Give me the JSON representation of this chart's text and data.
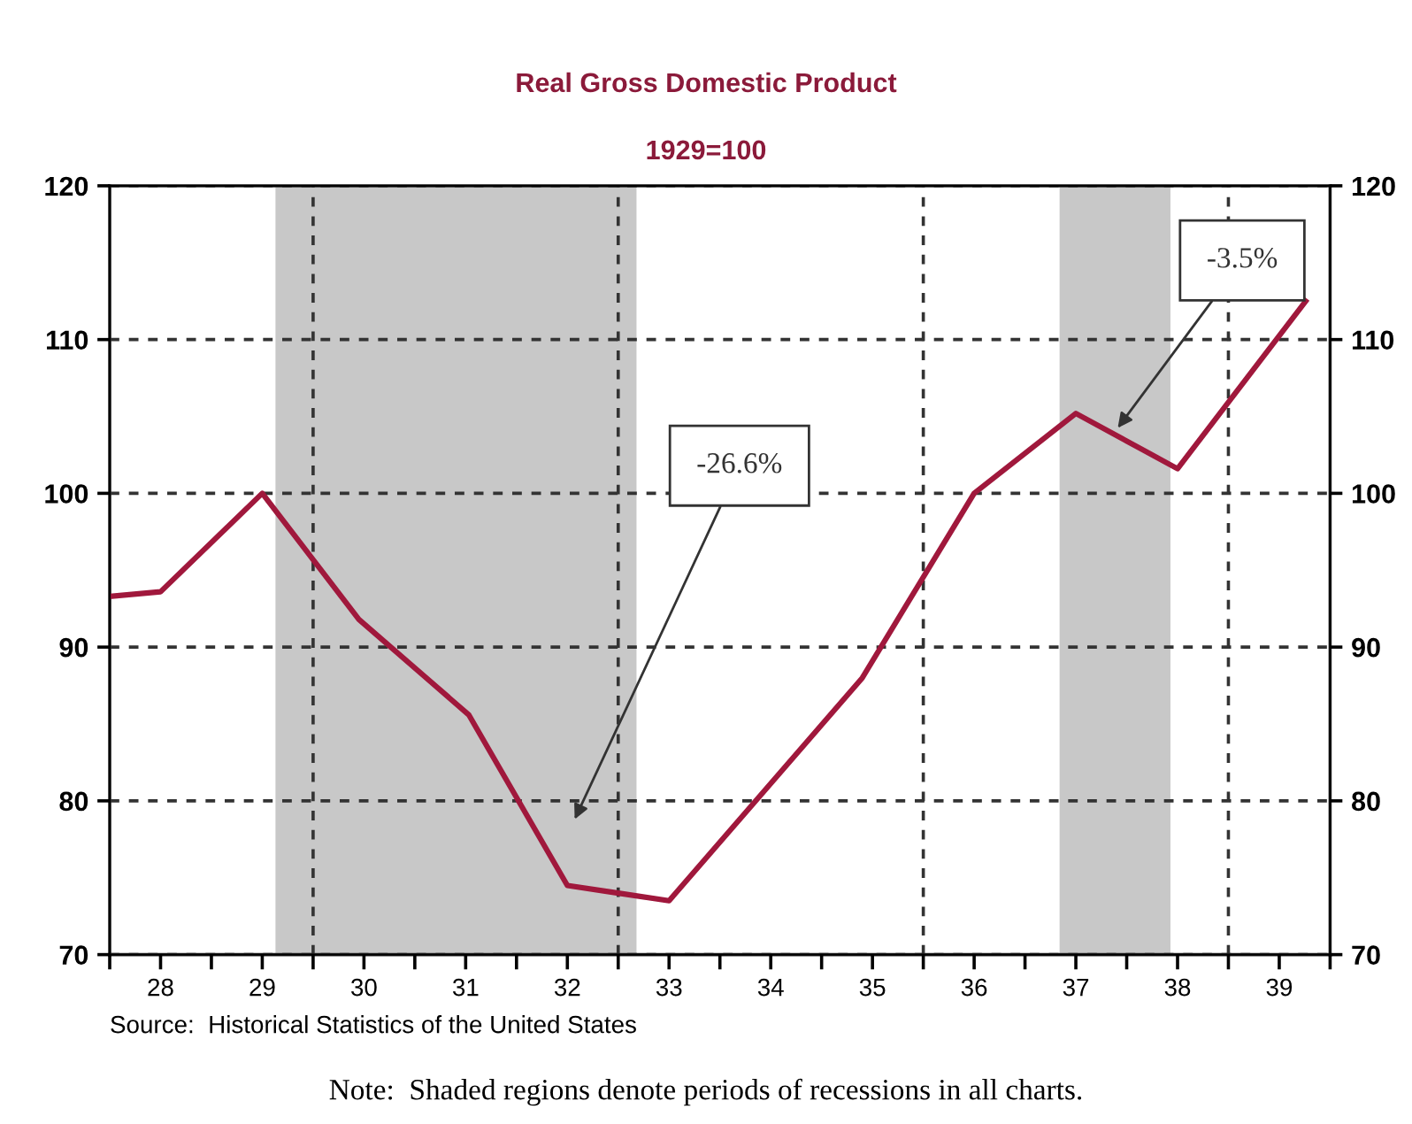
{
  "chart_data": {
    "type": "line",
    "title": "Real Gross Domestic Product",
    "subtitle": "1929=100",
    "x": [
      27.5,
      28.0,
      29.0,
      29.95,
      31.03,
      32.0,
      32.5,
      33.0,
      34.9,
      36.0,
      37.0,
      38.0,
      39.26
    ],
    "series": [
      {
        "color": "#a0183c",
        "values": [
          93.3,
          93.6,
          100.0,
          91.8,
          85.6,
          74.5,
          74.0,
          73.5,
          88.0,
          100.0,
          105.2,
          101.6,
          112.5
        ]
      }
    ],
    "xlim": [
      27.5,
      39.5
    ],
    "xticks": [
      {
        "value": 27.5,
        "label": null
      },
      28,
      {
        "value": 28.5,
        "label": null
      },
      29,
      {
        "value": 29.5,
        "label": null
      },
      30,
      {
        "value": 30.5,
        "label": null
      },
      31,
      {
        "value": 31.5,
        "label": null
      },
      32,
      {
        "value": 32.5,
        "label": null
      },
      33,
      {
        "value": 33.5,
        "label": null
      },
      34,
      {
        "value": 34.5,
        "label": null
      },
      35,
      {
        "value": 35.5,
        "label": null
      },
      36,
      {
        "value": 36.5,
        "label": null
      },
      37,
      {
        "value": 37.5,
        "label": null
      },
      38,
      {
        "value": 38.5,
        "label": null
      },
      39,
      {
        "value": 39.5,
        "label": null
      }
    ],
    "ylim": [
      70,
      120
    ],
    "yticks": [
      70,
      80,
      90,
      100,
      110,
      120
    ],
    "y2lim": [
      70,
      120
    ],
    "y2ticks": [
      70,
      80,
      90,
      100,
      110,
      120
    ],
    "grid": "y",
    "line_style": "solid",
    "ref_lines": [
      {
        "axis": "x",
        "value": 29.5,
        "color": "#333333",
        "line_style": "dashed"
      },
      {
        "axis": "x",
        "value": 32.5,
        "color": "#333333",
        "line_style": "dashed"
      },
      {
        "axis": "x",
        "value": 35.5,
        "color": "#333333",
        "line_style": "dashed"
      },
      {
        "axis": "x",
        "value": 38.5,
        "color": "#333333",
        "line_style": "dashed"
      }
    ],
    "bands": [
      {
        "axis": "x",
        "from": 29.13,
        "to": 32.68,
        "color": "#c8c8c8"
      },
      {
        "axis": "x",
        "from": 36.84,
        "to": 37.93,
        "color": "#c8c8c8"
      }
    ],
    "annotations": [
      "-26.6%",
      "-3.5%",
      "Source:  Historical Statistics of the United States",
      "Note:  Shaded regions denote periods of recessions in all charts."
    ]
  }
}
